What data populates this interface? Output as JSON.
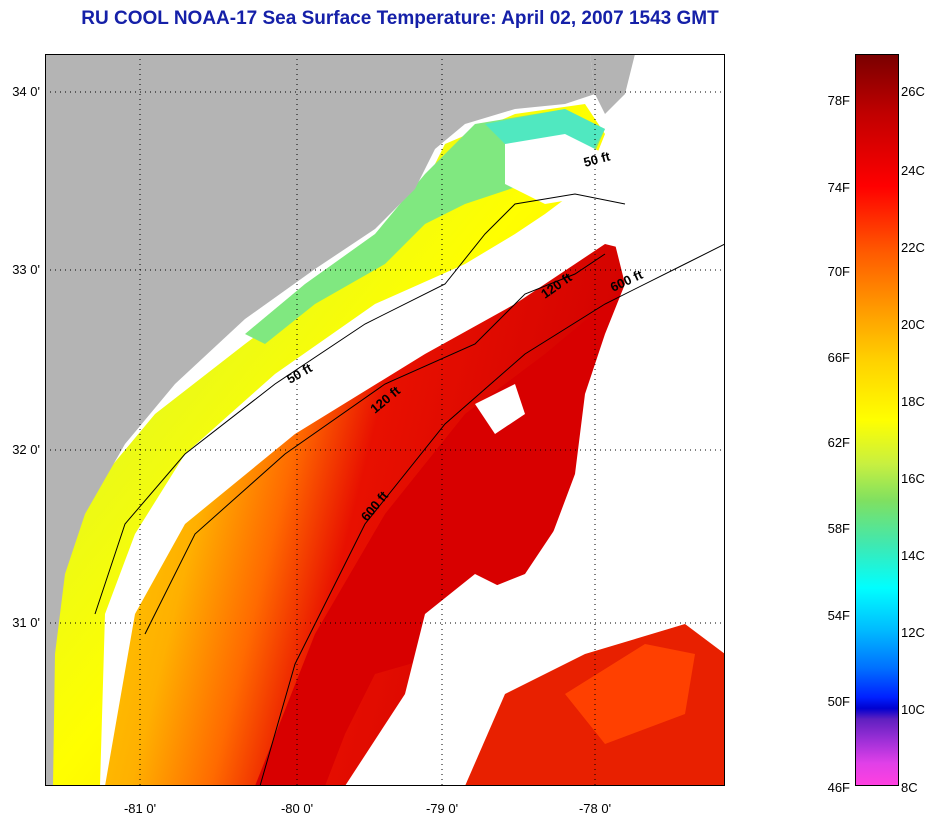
{
  "title": "RU COOL  NOAA-17  Sea Surface Temperature:  April 02, 2007 1543 GMT",
  "lat_ticks": [
    "34 0'",
    "33 0'",
    "32 0'",
    "31 0'"
  ],
  "lon_ticks": [
    "-81 0'",
    "-80 0'",
    "-79 0'",
    "-78 0'"
  ],
  "contours": {
    "c50_north": "50 ft",
    "c120_north": "120 ft",
    "c600_north": "600 ft",
    "c50_mid": "50 ft",
    "c120_mid": "120 ft",
    "c600_mid": "600 ft"
  },
  "colorbar": {
    "fahrenheit": [
      "78F",
      "74F",
      "70F",
      "66F",
      "62F",
      "58F",
      "54F",
      "50F",
      "46F"
    ],
    "celsius": [
      "26C",
      "24C",
      "22C",
      "20C",
      "18C",
      "16C",
      "14C",
      "12C",
      "10C",
      "8C"
    ]
  },
  "colors": {
    "land": "#b4b4b4",
    "cloud": "#ffffff",
    "title": "#1520a8"
  }
}
